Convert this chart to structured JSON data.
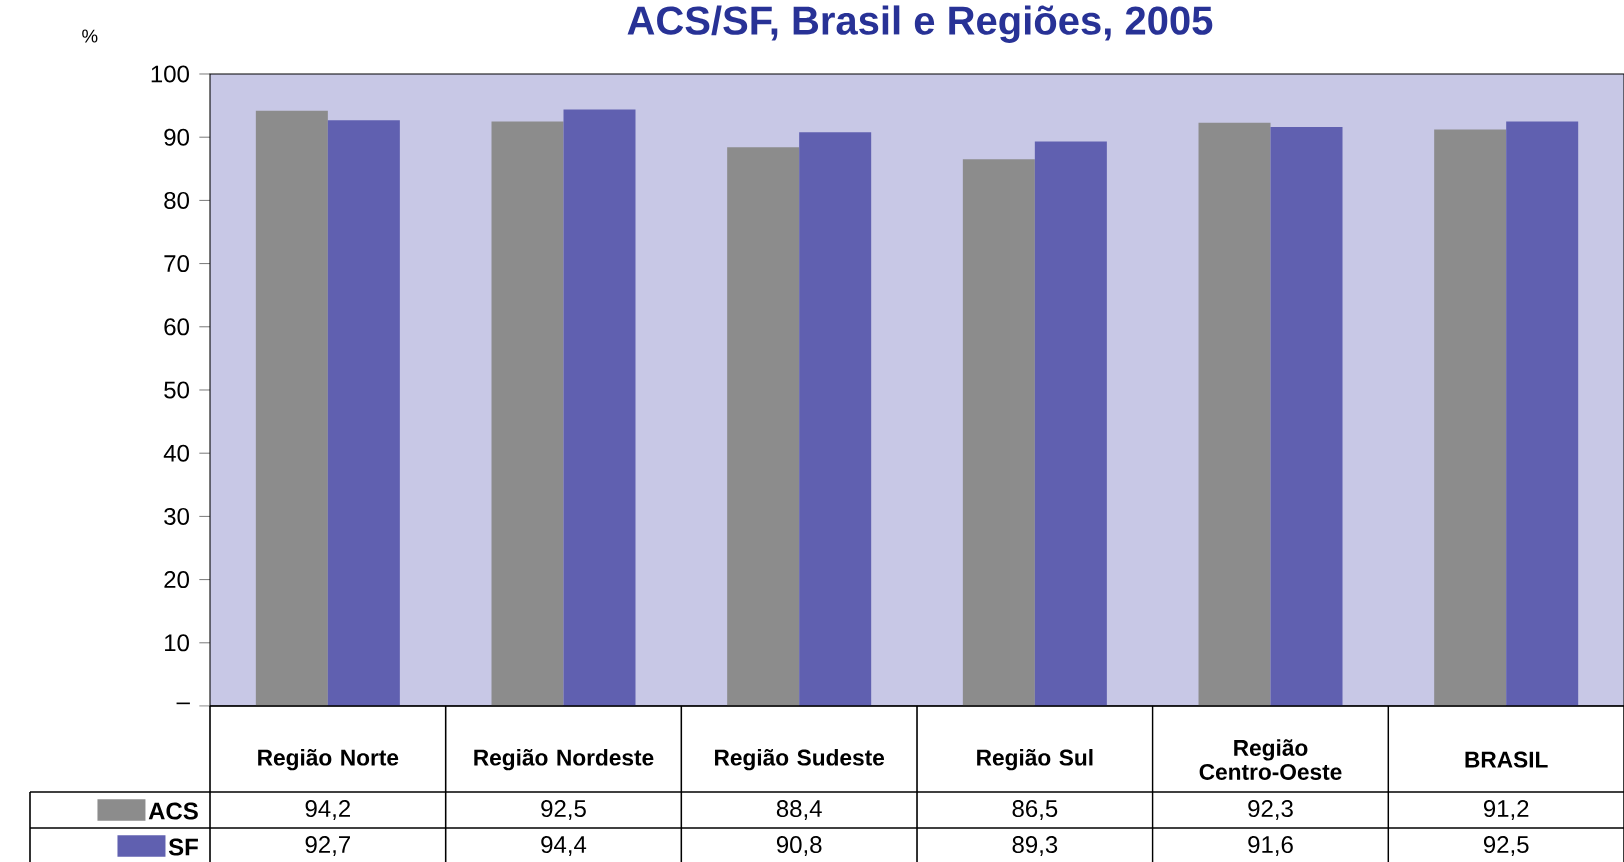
{
  "chart_data": {
    "type": "bar",
    "title": "ACS/SF, Brasil e Regiões, 2005",
    "ylabel": "%",
    "categories": [
      "Região Norte",
      "Região Nordeste",
      "Região Sudeste",
      "Região Sul",
      "Região Centro-Oeste",
      "BRASIL"
    ],
    "series": [
      {
        "name": "ACS",
        "color": "#8c8c8c",
        "values": [
          94.2,
          92.5,
          88.4,
          86.5,
          92.3,
          91.2
        ],
        "value_labels": [
          "94,2",
          "92,5",
          "88,4",
          "86,5",
          "92,3",
          "91,2"
        ]
      },
      {
        "name": "SF",
        "color": "#6060b0",
        "values": [
          92.7,
          94.4,
          90.8,
          89.3,
          91.6,
          92.5
        ],
        "value_labels": [
          "92,7",
          "94,4",
          "90,8",
          "89,3",
          "91,6",
          "92,5"
        ]
      }
    ],
    "legend": "bottom left",
    "ylim": [
      0,
      100
    ],
    "yticks": [
      {
        "value": 0,
        "label": "–"
      },
      10,
      20,
      30,
      40,
      50,
      60,
      70,
      80,
      90,
      100
    ]
  }
}
